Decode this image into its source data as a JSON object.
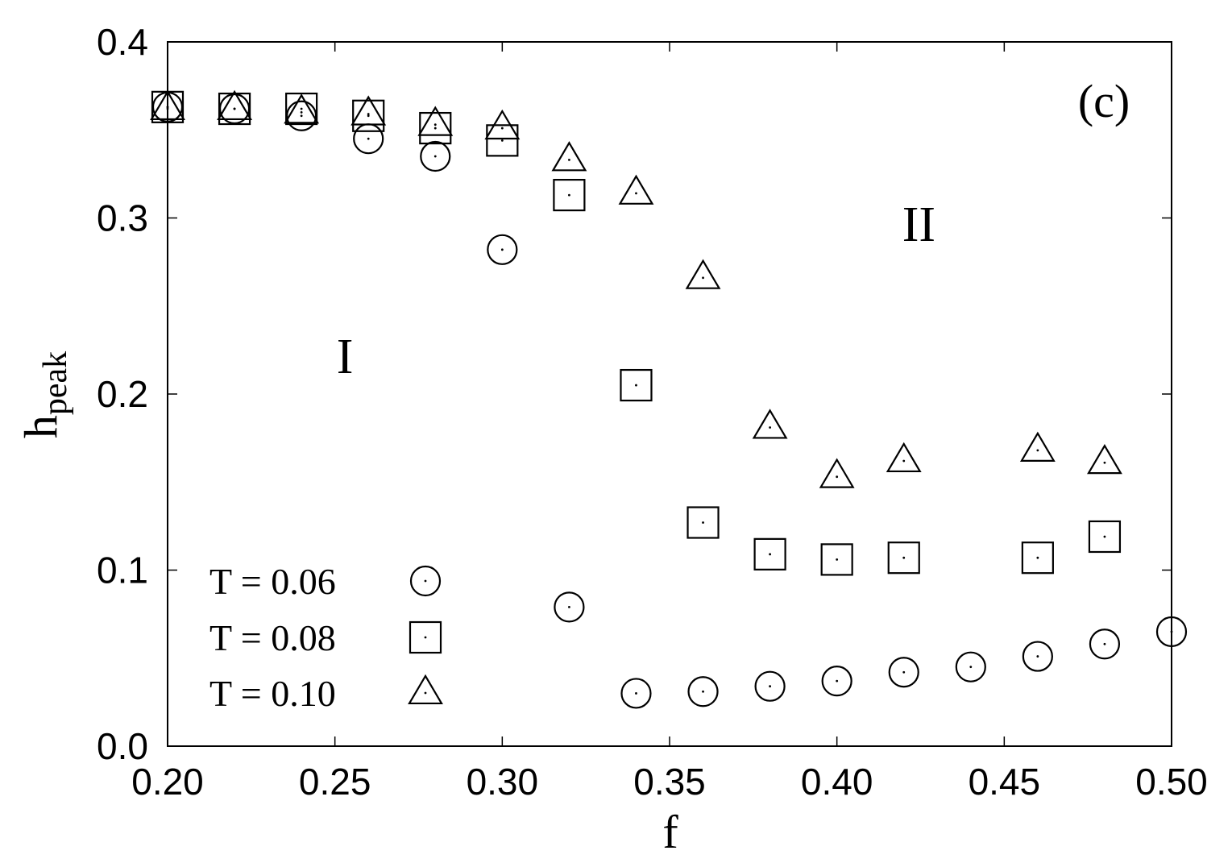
{
  "chart_data": {
    "type": "scatter",
    "panel_label": "(c)",
    "xlabel": "f",
    "ylabel": {
      "main": "h",
      "sub": "peak"
    },
    "xlim": [
      0.2,
      0.5
    ],
    "ylim": [
      0.0,
      0.4
    ],
    "xticks": [
      "0.20",
      "0.25",
      "0.30",
      "0.35",
      "0.40",
      "0.45",
      "0.50"
    ],
    "yticks": [
      "0.0",
      "0.1",
      "0.2",
      "0.3",
      "0.4"
    ],
    "annotations": [
      {
        "text": "I",
        "x": 0.253,
        "y": 0.222
      },
      {
        "text": "II",
        "x": 0.4245,
        "y": 0.297
      }
    ],
    "legend_placement": "bottom-left",
    "series": [
      {
        "name": "T = 0.06",
        "marker": "circle",
        "points": [
          [
            0.2,
            0.363
          ],
          [
            0.22,
            0.362
          ],
          [
            0.24,
            0.358
          ],
          [
            0.26,
            0.345
          ],
          [
            0.28,
            0.335
          ],
          [
            0.3,
            0.282
          ],
          [
            0.32,
            0.079
          ],
          [
            0.34,
            0.03
          ],
          [
            0.36,
            0.031
          ],
          [
            0.38,
            0.034
          ],
          [
            0.4,
            0.037
          ],
          [
            0.42,
            0.042
          ],
          [
            0.44,
            0.045
          ],
          [
            0.46,
            0.051
          ],
          [
            0.48,
            0.058
          ],
          [
            0.5,
            0.065
          ]
        ]
      },
      {
        "name": "T = 0.08",
        "marker": "square",
        "points": [
          [
            0.2,
            0.363
          ],
          [
            0.22,
            0.362
          ],
          [
            0.24,
            0.362
          ],
          [
            0.26,
            0.358
          ],
          [
            0.28,
            0.351
          ],
          [
            0.3,
            0.344
          ],
          [
            0.32,
            0.313
          ],
          [
            0.34,
            0.205
          ],
          [
            0.36,
            0.127
          ],
          [
            0.38,
            0.109
          ],
          [
            0.4,
            0.106
          ],
          [
            0.42,
            0.107
          ],
          [
            0.46,
            0.107
          ],
          [
            0.48,
            0.119
          ]
        ]
      },
      {
        "name": "T = 0.10",
        "marker": "triangle",
        "points": [
          [
            0.2,
            0.362
          ],
          [
            0.22,
            0.362
          ],
          [
            0.24,
            0.36
          ],
          [
            0.26,
            0.359
          ],
          [
            0.28,
            0.353
          ],
          [
            0.3,
            0.351
          ],
          [
            0.32,
            0.333
          ],
          [
            0.34,
            0.314
          ],
          [
            0.36,
            0.266
          ],
          [
            0.38,
            0.181
          ],
          [
            0.4,
            0.153
          ],
          [
            0.42,
            0.162
          ],
          [
            0.46,
            0.168
          ],
          [
            0.48,
            0.161
          ]
        ]
      }
    ]
  }
}
